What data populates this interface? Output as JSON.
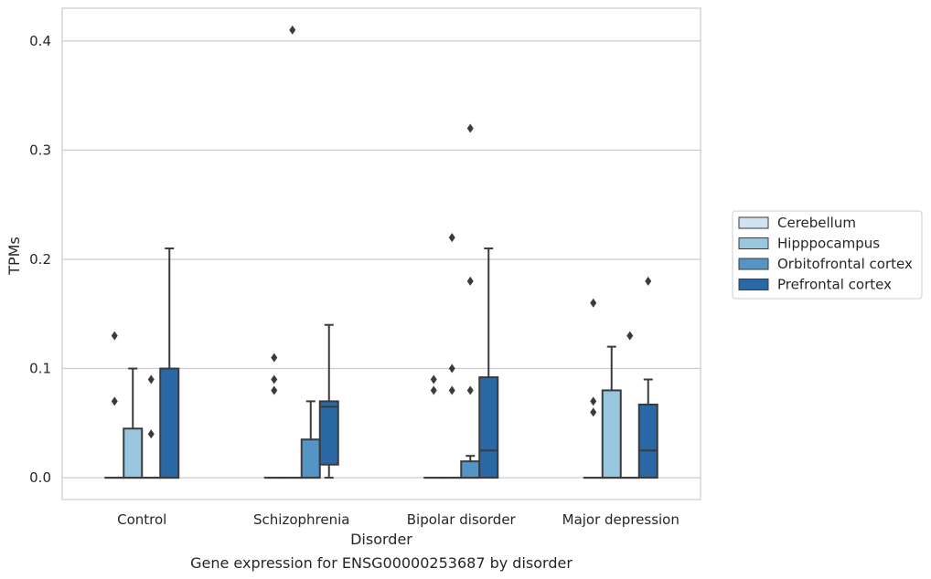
{
  "chart_data": {
    "type": "box",
    "title": "Gene expression for ENSG00000253687 by disorder",
    "xlabel": "Disorder",
    "ylabel": "TPMs",
    "ylim": [
      -0.02,
      0.43
    ],
    "yticks": [
      0.0,
      0.1,
      0.2,
      0.3,
      0.4
    ],
    "ytick_labels": [
      "0.0",
      "0.1",
      "0.2",
      "0.3",
      "0.4"
    ],
    "grid": "horizontal",
    "legend_position": "right",
    "categories": [
      "Control",
      "Schizophrenia",
      "Bipolar disorder",
      "Major depression"
    ],
    "series": [
      {
        "name": "Cerebellum",
        "color": "#d1e2f2",
        "boxes": [
          {
            "q1": 0,
            "median": 0,
            "q3": 0,
            "whisker_low": 0,
            "whisker_high": 0,
            "outliers": [
              0.07,
              0.13
            ]
          },
          {
            "q1": 0,
            "median": 0,
            "q3": 0,
            "whisker_low": 0,
            "whisker_high": 0,
            "outliers": [
              0.08,
              0.09,
              0.11
            ]
          },
          {
            "q1": 0,
            "median": 0,
            "q3": 0,
            "whisker_low": 0,
            "whisker_high": 0,
            "outliers": [
              0.08,
              0.09
            ]
          },
          {
            "q1": 0,
            "median": 0,
            "q3": 0,
            "whisker_low": 0,
            "whisker_high": 0,
            "outliers": [
              0.06,
              0.07,
              0.16
            ]
          }
        ]
      },
      {
        "name": "Hipppocampus",
        "color": "#9ac7e0",
        "boxes": [
          {
            "q1": 0,
            "median": 0,
            "q3": 0.045,
            "whisker_low": 0,
            "whisker_high": 0.1,
            "outliers": []
          },
          {
            "q1": 0,
            "median": 0,
            "q3": 0,
            "whisker_low": 0,
            "whisker_high": 0,
            "outliers": [
              0.41
            ]
          },
          {
            "q1": 0,
            "median": 0,
            "q3": 0,
            "whisker_low": 0,
            "whisker_high": 0,
            "outliers": [
              0.08,
              0.1,
              0.22
            ]
          },
          {
            "q1": 0,
            "median": 0,
            "q3": 0.08,
            "whisker_low": 0,
            "whisker_high": 0.12,
            "outliers": []
          }
        ]
      },
      {
        "name": "Orbitofrontal cortex",
        "color": "#5595c6",
        "boxes": [
          {
            "q1": 0,
            "median": 0,
            "q3": 0,
            "whisker_low": 0,
            "whisker_high": 0,
            "outliers": [
              0.04,
              0.09
            ]
          },
          {
            "q1": 0,
            "median": 0,
            "q3": 0.035,
            "whisker_low": 0,
            "whisker_high": 0.07,
            "outliers": []
          },
          {
            "q1": 0,
            "median": 0,
            "q3": 0.015,
            "whisker_low": 0,
            "whisker_high": 0.02,
            "outliers": [
              0.08,
              0.18,
              0.32
            ]
          },
          {
            "q1": 0,
            "median": 0,
            "q3": 0,
            "whisker_low": 0,
            "whisker_high": 0,
            "outliers": [
              0.13
            ]
          }
        ]
      },
      {
        "name": "Prefrontal cortex",
        "color": "#2a68a6",
        "boxes": [
          {
            "q1": 0,
            "median": 0,
            "q3": 0.1,
            "whisker_low": 0,
            "whisker_high": 0.21,
            "outliers": []
          },
          {
            "q1": 0.012,
            "median": 0.065,
            "q3": 0.07,
            "whisker_low": 0,
            "whisker_high": 0.14,
            "outliers": []
          },
          {
            "q1": 0,
            "median": 0.025,
            "q3": 0.092,
            "whisker_low": 0,
            "whisker_high": 0.21,
            "outliers": []
          },
          {
            "q1": 0,
            "median": 0.025,
            "q3": 0.067,
            "whisker_low": 0,
            "whisker_high": 0.09,
            "outliers": [
              0.18
            ]
          }
        ]
      }
    ]
  }
}
